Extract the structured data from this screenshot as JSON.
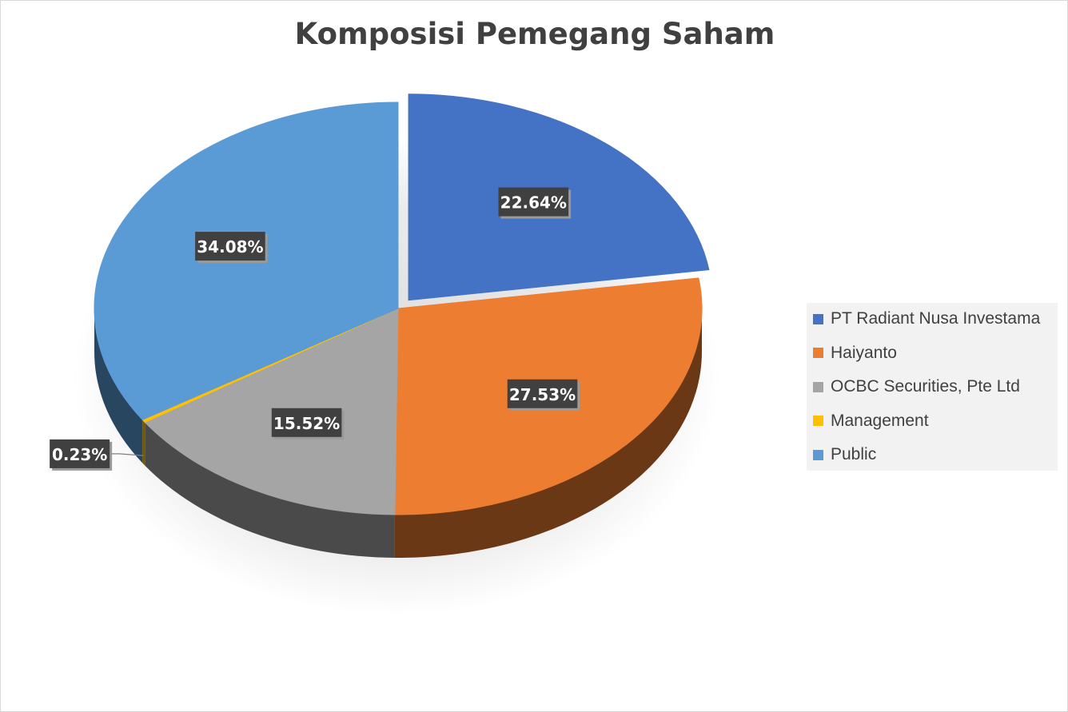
{
  "chart_data": {
    "type": "pie",
    "title": "Komposisi Pemegang Saham",
    "legend_position": "right",
    "slices": [
      {
        "name": "PT Radiant Nusa Investama",
        "value": 22.64,
        "label": "22.64%",
        "color": "#4472c4",
        "exploded": true
      },
      {
        "name": "Haiyanto",
        "value": 27.53,
        "label": "27.53%",
        "color": "#ed7d31",
        "exploded": false
      },
      {
        "name": "OCBC Securities, Pte Ltd",
        "value": 15.52,
        "label": "15.52%",
        "color": "#a5a5a5",
        "exploded": false
      },
      {
        "name": "Management",
        "value": 0.23,
        "label": "0.23%",
        "color": "#ffc000",
        "exploded": false
      },
      {
        "name": "Public",
        "value": 34.08,
        "label": "34.08%",
        "color": "#5b9bd5",
        "exploded": false
      }
    ]
  }
}
